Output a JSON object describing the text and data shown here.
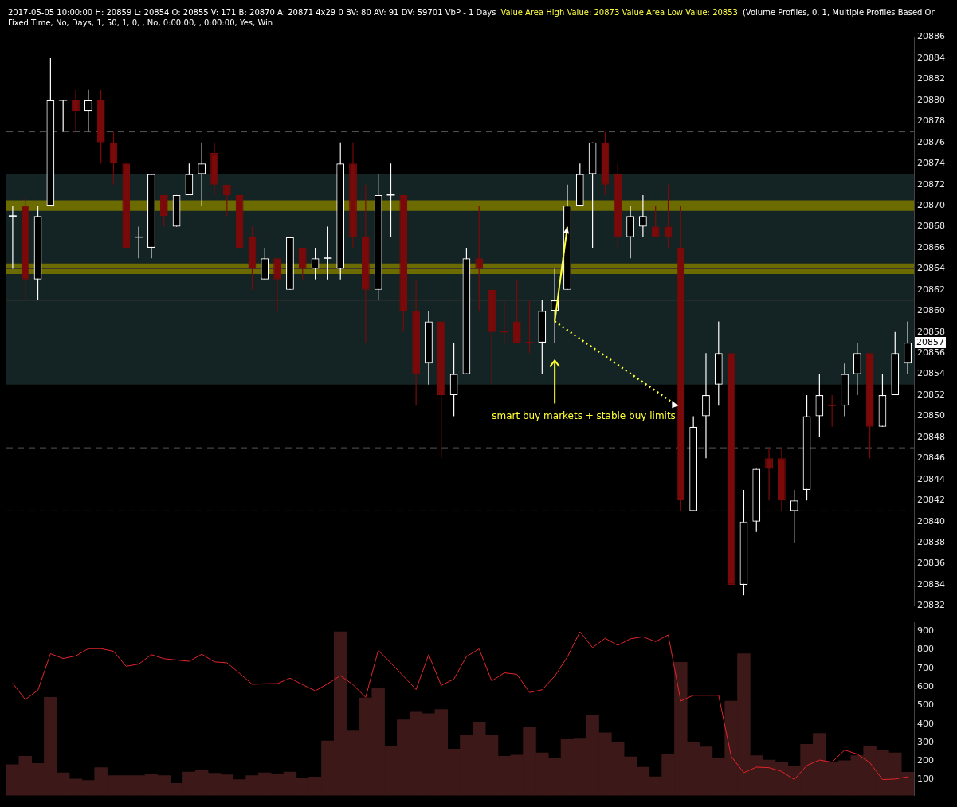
{
  "chart_data": [
    {
      "type": "candlestick",
      "title": "2017-05-05 10:00:00 H: 20859 L: 20854 O: 20855 V: 171 B: 20870 A: 20871 4x29 0 BV: 80 AV: 91 DV: 59701  VbP - 1 Days",
      "subtitle": "Value Area High Value: 20873  Value Area Low Value: 20853",
      "annotations": [
        "(Volume Profiles, 0, 1, Multiple Profiles Based On Fixed Time, No, Days, 1, 50, 1, 0, , No, 0:00:00, , 0:00:00, Yes, Win",
        "smart buy markets + stable buy limits",
        {
          "text": "20857",
          "y": 20857
        }
      ],
      "categories": [
        null,
        null,
        null,
        null,
        null,
        null,
        null,
        null,
        null,
        null,
        null,
        null,
        null,
        null,
        null,
        null,
        null,
        null,
        null,
        null,
        null,
        null,
        null,
        null,
        null,
        null,
        null,
        null,
        null,
        null,
        null,
        null,
        null,
        null,
        null,
        null,
        null,
        null,
        null,
        null,
        null,
        null,
        null,
        null,
        null,
        null,
        null,
        null,
        null,
        null,
        null,
        null,
        null,
        null,
        null,
        null,
        null,
        null,
        null,
        null,
        null,
        null,
        null,
        null,
        null,
        null,
        null,
        null,
        null,
        null,
        null,
        null
      ],
      "ohlc": [
        [
          20869,
          20870,
          20864,
          20869
        ],
        [
          20870,
          20871,
          20861,
          20863
        ],
        [
          20863,
          20870,
          20861,
          20869
        ],
        [
          20870,
          20884,
          20870,
          20880
        ],
        [
          20880,
          20880,
          20877,
          20880
        ],
        [
          20880,
          20881,
          20877,
          20879
        ],
        [
          20879,
          20881,
          20877,
          20880
        ],
        [
          20880,
          20881,
          20874,
          20876
        ],
        [
          20876,
          20877,
          20872,
          20874
        ],
        [
          20874,
          20874,
          20866,
          20866
        ],
        [
          20867,
          20868,
          20865,
          20867
        ],
        [
          20866,
          20873,
          20865,
          20873
        ],
        [
          20871,
          20871,
          20868,
          20869
        ],
        [
          20868,
          20871,
          20868,
          20871
        ],
        [
          20871,
          20874,
          20871,
          20873
        ],
        [
          20873,
          20876,
          20870,
          20874
        ],
        [
          20875,
          20876,
          20871,
          20872
        ],
        [
          20872,
          20872,
          20869,
          20871
        ],
        [
          20871,
          20871,
          20866,
          20866
        ],
        [
          20867,
          20868,
          20862,
          20864
        ],
        [
          20863,
          20866,
          20863,
          20865
        ],
        [
          20865,
          20865,
          20860,
          20863
        ],
        [
          20862,
          20867,
          20862,
          20867
        ],
        [
          20866,
          20866,
          20863,
          20864
        ],
        [
          20864,
          20866,
          20863,
          20865
        ],
        [
          20865,
          20868,
          20863,
          20865
        ],
        [
          20864,
          20876,
          20863,
          20874
        ],
        [
          20874,
          20876,
          20866,
          20867
        ],
        [
          20867,
          20872,
          20857,
          20862
        ],
        [
          20862,
          20873,
          20861,
          20871
        ],
        [
          20871,
          20874,
          20867,
          20871
        ],
        [
          20871,
          20871,
          20858,
          20860
        ],
        [
          20860,
          20863,
          20851,
          20854
        ],
        [
          20855,
          20860,
          20853,
          20859
        ],
        [
          20859,
          20859,
          20846,
          20852
        ],
        [
          20852,
          20857,
          20850,
          20854
        ],
        [
          20854,
          20866,
          20854,
          20865
        ],
        [
          20865,
          20870,
          20860,
          20864
        ],
        [
          20862,
          20862,
          20853,
          20858
        ],
        [
          20858,
          20861,
          20857,
          20858
        ],
        [
          20859,
          20863,
          20857,
          20857
        ],
        [
          20857,
          20861,
          20856,
          20857
        ],
        [
          20857,
          20861,
          20854,
          20860
        ],
        [
          20860,
          20864,
          20857,
          20861
        ],
        [
          20862,
          20872,
          20862,
          20870
        ],
        [
          20870,
          20874,
          20870,
          20873
        ],
        [
          20873,
          20876,
          20866,
          20876
        ],
        [
          20876,
          20877,
          20871,
          20872
        ],
        [
          20873,
          20874,
          20866,
          20867
        ],
        [
          20867,
          20870,
          20865,
          20869
        ],
        [
          20868,
          20871,
          20867,
          20869
        ],
        [
          20868,
          20870,
          20867,
          20867
        ],
        [
          20868,
          20872,
          20866,
          20867
        ],
        [
          20866,
          20870,
          20841,
          20842
        ],
        [
          20841,
          20850,
          20841,
          20849
        ],
        [
          20850,
          20856,
          20846,
          20852
        ],
        [
          20853,
          20859,
          20851,
          20856
        ],
        [
          20856,
          20856,
          20834,
          20834
        ],
        [
          20834,
          20843,
          20833,
          20840
        ],
        [
          20840,
          20845,
          20839,
          20845
        ],
        [
          20846,
          20847,
          20842,
          20845
        ],
        [
          20846,
          20847,
          20841,
          20842
        ],
        [
          20841,
          20843,
          20838,
          20842
        ],
        [
          20843,
          20852,
          20842,
          20850
        ],
        [
          20850,
          20854,
          20848,
          20852
        ],
        [
          20851,
          20852,
          20849,
          20851
        ],
        [
          20851,
          20855,
          20850,
          20854
        ],
        [
          20854,
          20857,
          20852,
          20856
        ],
        [
          20856,
          20856,
          20846,
          20849
        ],
        [
          20849,
          20854,
          20849,
          20852
        ],
        [
          20852,
          20858,
          20852,
          20856
        ],
        [
          20855,
          20859,
          20854,
          20857
        ]
      ],
      "colors": [
        "#ffffff",
        "#7a0a0a",
        "#ffffff",
        "#ffffff",
        "#ffffff",
        "#7a0a0a",
        "#ffffff",
        "#7a0a0a",
        "#7a0a0a",
        "#7a0a0a",
        "#ffffff",
        "#ffffff",
        "#7a0a0a",
        "#ffffff",
        "#ffffff",
        "#ffffff",
        "#7a0a0a",
        "#7a0a0a",
        "#7a0a0a",
        "#7a0a0a",
        "#ffffff",
        "#7a0a0a",
        "#ffffff",
        "#7a0a0a",
        "#ffffff",
        "#ffffff",
        "#ffffff",
        "#7a0a0a",
        "#7a0a0a",
        "#ffffff",
        "#ffffff",
        "#7a0a0a",
        "#7a0a0a",
        "#ffffff",
        "#7a0a0a",
        "#ffffff",
        "#ffffff",
        "#7a0a0a",
        "#7a0a0a",
        "#7a0a0a",
        "#7a0a0a",
        "#7a0a0a",
        "#ffffff",
        "#ffffff",
        "#ffffff",
        "#ffffff",
        "#ffffff",
        "#7a0a0a",
        "#7a0a0a",
        "#ffffff",
        "#ffffff",
        "#7a0a0a",
        "#7a0a0a",
        "#7a0a0a",
        "#ffffff",
        "#ffffff",
        "#ffffff",
        "#7a0a0a",
        "#ffffff",
        "#ffffff",
        "#7a0a0a",
        "#7a0a0a",
        "#ffffff",
        "#ffffff",
        "#ffffff",
        "#7a0a0a",
        "#ffffff",
        "#ffffff",
        "#7a0a0a",
        "#ffffff",
        "#ffffff",
        "#ffffff"
      ],
      "ylim": [
        20832,
        20886
      ],
      "yticks": [
        20832,
        20834,
        20836,
        20838,
        20840,
        20842,
        20844,
        20846,
        20848,
        20850,
        20852,
        20854,
        20856,
        20858,
        20860,
        20862,
        20864,
        20866,
        20868,
        20870,
        20872,
        20874,
        20876,
        20878,
        20880,
        20882,
        20884,
        20886
      ],
      "bands": [
        {
          "axis": "y",
          "from": 20853,
          "to": 20873,
          "color": "#142424"
        },
        {
          "axis": "y",
          "from": 20863.5,
          "to": 20864.5,
          "color": "#6b6b00"
        },
        {
          "axis": "y",
          "from": 20869.5,
          "to": 20870.5,
          "color": "#6b6b00"
        }
      ],
      "ref_lines": [
        {
          "axis": "y",
          "value": 20877,
          "color": "#555555",
          "line_style": "dashed"
        },
        {
          "axis": "y",
          "value": 20847,
          "color": "#555555",
          "line_style": "dashed"
        },
        {
          "axis": "y",
          "value": 20841,
          "color": "#555555",
          "line_style": "dashed"
        },
        {
          "axis": "y",
          "value": 20864,
          "color": "#333333",
          "line_style": "solid"
        },
        {
          "axis": "y",
          "value": 20861,
          "color": "#333333",
          "line_style": "solid"
        }
      ],
      "tick_labels": "y"
    },
    {
      "type": "bar",
      "categories": [
        null,
        null,
        null,
        null,
        null,
        null,
        null,
        null,
        null,
        null,
        null,
        null,
        null,
        null,
        null,
        null,
        null,
        null,
        null,
        null,
        null,
        null,
        null,
        null,
        null,
        null,
        null,
        null,
        null,
        null,
        null,
        null,
        null,
        null,
        null,
        null,
        null,
        null,
        null,
        null,
        null,
        null,
        null,
        null,
        null,
        null,
        null,
        null,
        null,
        null,
        null,
        null,
        null,
        null,
        null,
        null,
        null,
        null,
        null,
        null,
        null,
        null,
        null,
        null,
        null,
        null,
        null,
        null,
        null,
        null,
        null,
        null
      ],
      "series": [
        {
          "type": "bar",
          "color": "#3d1818",
          "values": [
            180,
            225,
            187,
            543,
            137,
            103,
            96,
            164,
            122,
            122,
            122,
            129,
            122,
            80,
            141,
            152,
            134,
            126,
            100,
            122,
            137,
            131,
            141,
            106,
            114,
            308,
            896,
            366,
            540,
            591,
            278,
            422,
            464,
            455,
            478,
            264,
            338,
            410,
            340,
            225,
            232,
            384,
            244,
            214,
            316,
            319,
            444,
            352,
            300,
            222,
            167,
            115,
            237,
            732,
            300,
            276,
            214,
            523,
            778,
            229,
            205,
            194,
            170,
            290,
            349,
            194,
            202,
            229,
            281,
            258,
            244,
            140
          ]
        },
        {
          "type": "line",
          "color": "#e0262b",
          "values": [
            619,
            531,
            581,
            778,
            752,
            766,
            805,
            805,
            791,
            710,
            722,
            773,
            751,
            744,
            737,
            775,
            734,
            729,
            672,
            613,
            616,
            617,
            646,
            611,
            578,
            616,
            660,
            611,
            543,
            796,
            728,
            657,
            585,
            773,
            607,
            641,
            763,
            804,
            631,
            675,
            667,
            569,
            584,
            657,
            760,
            896,
            811,
            861,
            823,
            858,
            869,
            843,
            879,
            523,
            554,
            554,
            554,
            225,
            137,
            167,
            164,
            144,
            100,
            176,
            205,
            194,
            259,
            237,
            191,
            100,
            103,
            115
          ]
        }
      ],
      "ylim": [
        15,
        945
      ],
      "yticks": [
        100,
        200,
        300,
        400,
        500,
        600,
        700,
        800,
        900
      ],
      "tick_labels": "y"
    }
  ]
}
